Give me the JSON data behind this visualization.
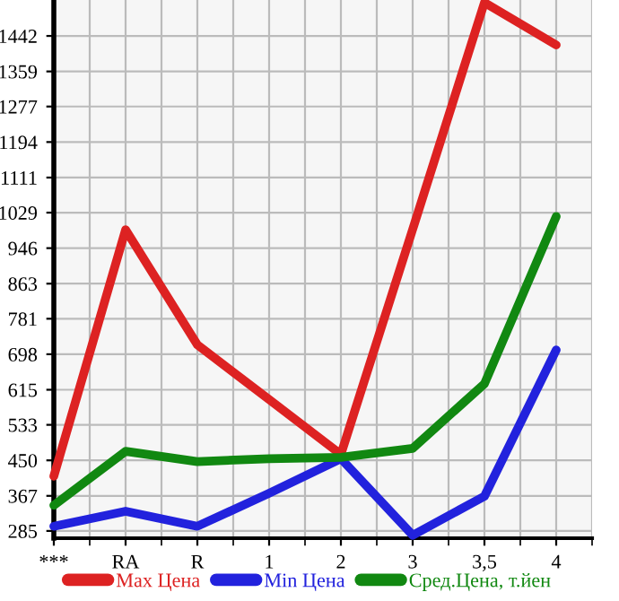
{
  "chart_data": {
    "type": "line",
    "categories": [
      "***",
      "RA",
      "R",
      "1",
      "2",
      "3",
      "3,5",
      "4"
    ],
    "series": [
      {
        "name": "Max Цена",
        "color": "#dd2222",
        "values": [
          413,
          989,
          720,
          592,
          464,
          990,
          1520,
          1421
        ]
      },
      {
        "name": "Min Цена",
        "color": "#2222dd",
        "values": [
          296,
          331,
          296,
          373,
          454,
          275,
          366,
          708
        ]
      },
      {
        "name": "Сред.Цена, т.йен",
        "color": "#118811",
        "values": [
          345,
          471,
          447,
          454,
          457,
          478,
          629,
          1020
        ]
      }
    ],
    "ylim": [
      268,
      1526
    ],
    "yticks": [
      285,
      367,
      450,
      533,
      615,
      698,
      781,
      863,
      946,
      1029,
      1111,
      1194,
      1277,
      1359,
      1442
    ],
    "grid": true,
    "legend": "bottom",
    "marker": "none",
    "line_style": "solid"
  }
}
